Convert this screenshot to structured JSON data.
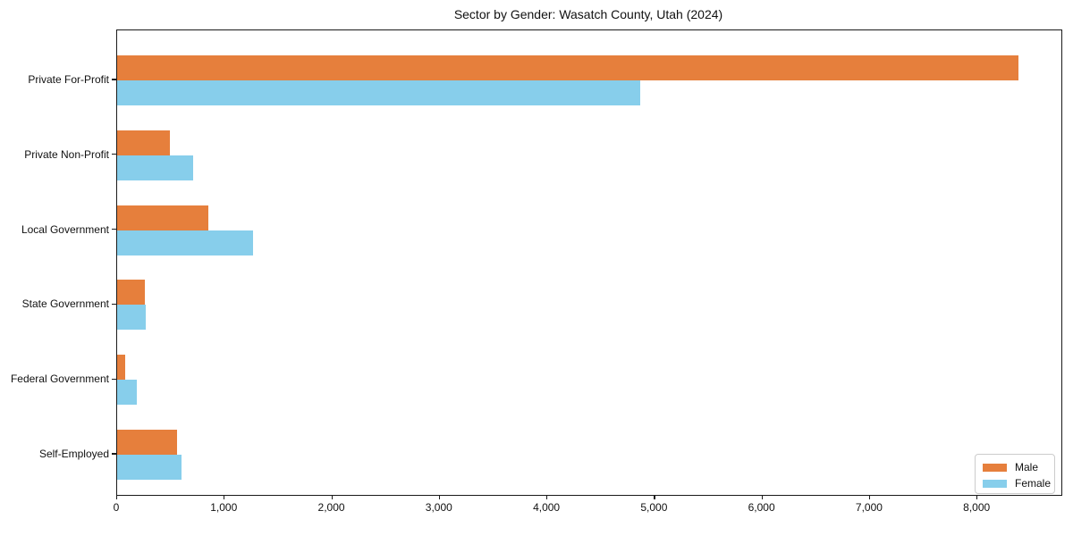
{
  "title": "Sector by Gender: Wasatch County, Utah (2024)",
  "colors": {
    "male": "#e67f3c",
    "female": "#87ceeb",
    "spine": "#1a1a1a",
    "legend_border": "#cccccc",
    "background": "#ffffff"
  },
  "chart_data": {
    "type": "bar",
    "orientation": "horizontal",
    "title": "Sector by Gender: Wasatch County, Utah (2024)",
    "categories": [
      "Private For-Profit",
      "Private Non-Profit",
      "Local Government",
      "State Government",
      "Federal Government",
      "Self-Employed"
    ],
    "series": [
      {
        "name": "Male",
        "color": "#e67f3c",
        "values": [
          8380,
          490,
          850,
          255,
          75,
          560
        ]
      },
      {
        "name": "Female",
        "color": "#87ceeb",
        "values": [
          4860,
          710,
          1260,
          265,
          180,
          600
        ]
      }
    ],
    "xlabel": "",
    "ylabel": "",
    "xlim": [
      0,
      8780
    ],
    "xticks": [
      0,
      1000,
      2000,
      3000,
      4000,
      5000,
      6000,
      7000,
      8000
    ],
    "xtick_labels": [
      "0",
      "1,000",
      "2,000",
      "3,000",
      "4,000",
      "5,000",
      "6,000",
      "7,000",
      "8,000"
    ],
    "grid": false,
    "legend_position": "lower right"
  },
  "legend": {
    "items": [
      {
        "label": "Male",
        "color": "#e67f3c"
      },
      {
        "label": "Female",
        "color": "#87ceeb"
      }
    ]
  }
}
